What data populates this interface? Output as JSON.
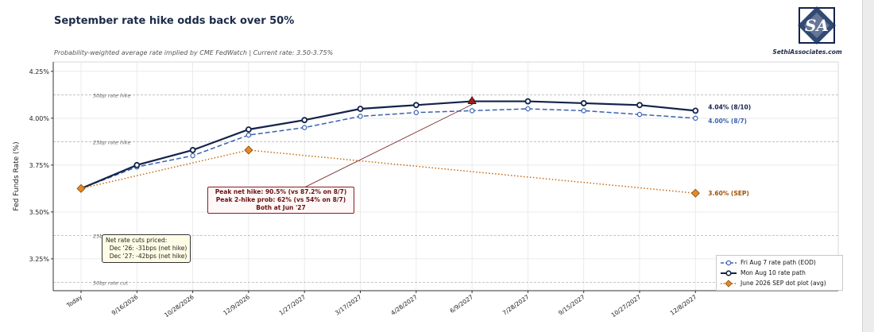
{
  "title": "September rate hike odds back over 50%",
  "subtitle": "Probability-weighted average rate implied by CME FedWatch  |  Current rate: 3.50-3.75%",
  "brand": "SethiAssociates.com",
  "colors": {
    "fri": "#3a63b0",
    "mon": "#13234a",
    "sep": "#c86a10",
    "peak": "#a01e1e",
    "grid": "#e6e6e6",
    "ref": "#b4b4b4"
  },
  "annotations": {
    "peak_lines": [
      "Peak net hike: 90.5% (vs 87.2% on 8/7)",
      "Peak 2-hike prob: 62% (vs 54% on 8/7)",
      "Both at Jun '27"
    ],
    "cuts_lines": [
      "Net rate cuts priced:",
      "  Dec '26: -31bps (net hike)",
      "  Dec '27: -42bps (net hike)"
    ]
  },
  "chart_data": {
    "type": "line",
    "title": "September rate hike odds back over 50%",
    "ylabel": "Fed Funds Rate (%)",
    "xlabel": "",
    "ylim": [
      3.08,
      4.3
    ],
    "yticks": [
      3.25,
      3.5,
      3.75,
      4.0,
      4.25
    ],
    "ytick_labels": [
      "3.25%",
      "3.50%",
      "3.75%",
      "4.00%",
      "4.25%"
    ],
    "grid": true,
    "legend_position": "bottom-right",
    "categories": [
      "Today",
      "9/16/2026",
      "10/28/2026",
      "12/9/2026",
      "1/27/2027",
      "3/17/2027",
      "4/28/2027",
      "6/9/2027",
      "7/28/2027",
      "9/15/2027",
      "10/27/2027",
      "12/8/2027"
    ],
    "series": [
      {
        "name": "Fri Aug 7 rate path (EOD)",
        "style": "dashed",
        "values": [
          3.625,
          3.74,
          3.8,
          3.91,
          3.95,
          4.01,
          4.03,
          4.04,
          4.05,
          4.04,
          4.02,
          4.0
        ],
        "end_label": "4.00% (8/7)"
      },
      {
        "name": "Mon Aug 10 rate path",
        "style": "solid",
        "values": [
          3.625,
          3.75,
          3.83,
          3.94,
          3.99,
          4.05,
          4.07,
          4.09,
          4.09,
          4.08,
          4.07,
          4.04
        ],
        "end_label": "4.04% (8/10)"
      },
      {
        "name": "June 2026 SEP dot plot (avg)",
        "style": "dotted",
        "points": [
          {
            "x": "Today",
            "y": 3.625
          },
          {
            "x": "12/9/2026",
            "y": 3.83
          },
          {
            "x": "12/8/2027",
            "y": 3.6
          }
        ],
        "end_label": "3.60% (SEP)"
      }
    ],
    "reference_lines": [
      {
        "y": 4.125,
        "label": "50bp rate hike"
      },
      {
        "y": 3.875,
        "label": "25bp rate hike"
      },
      {
        "y": 3.375,
        "label": "25bp rate cut"
      },
      {
        "y": 3.125,
        "label": "50bp rate cut"
      }
    ],
    "peak_marker": {
      "x": "6/9/2027",
      "y": 4.09
    }
  }
}
